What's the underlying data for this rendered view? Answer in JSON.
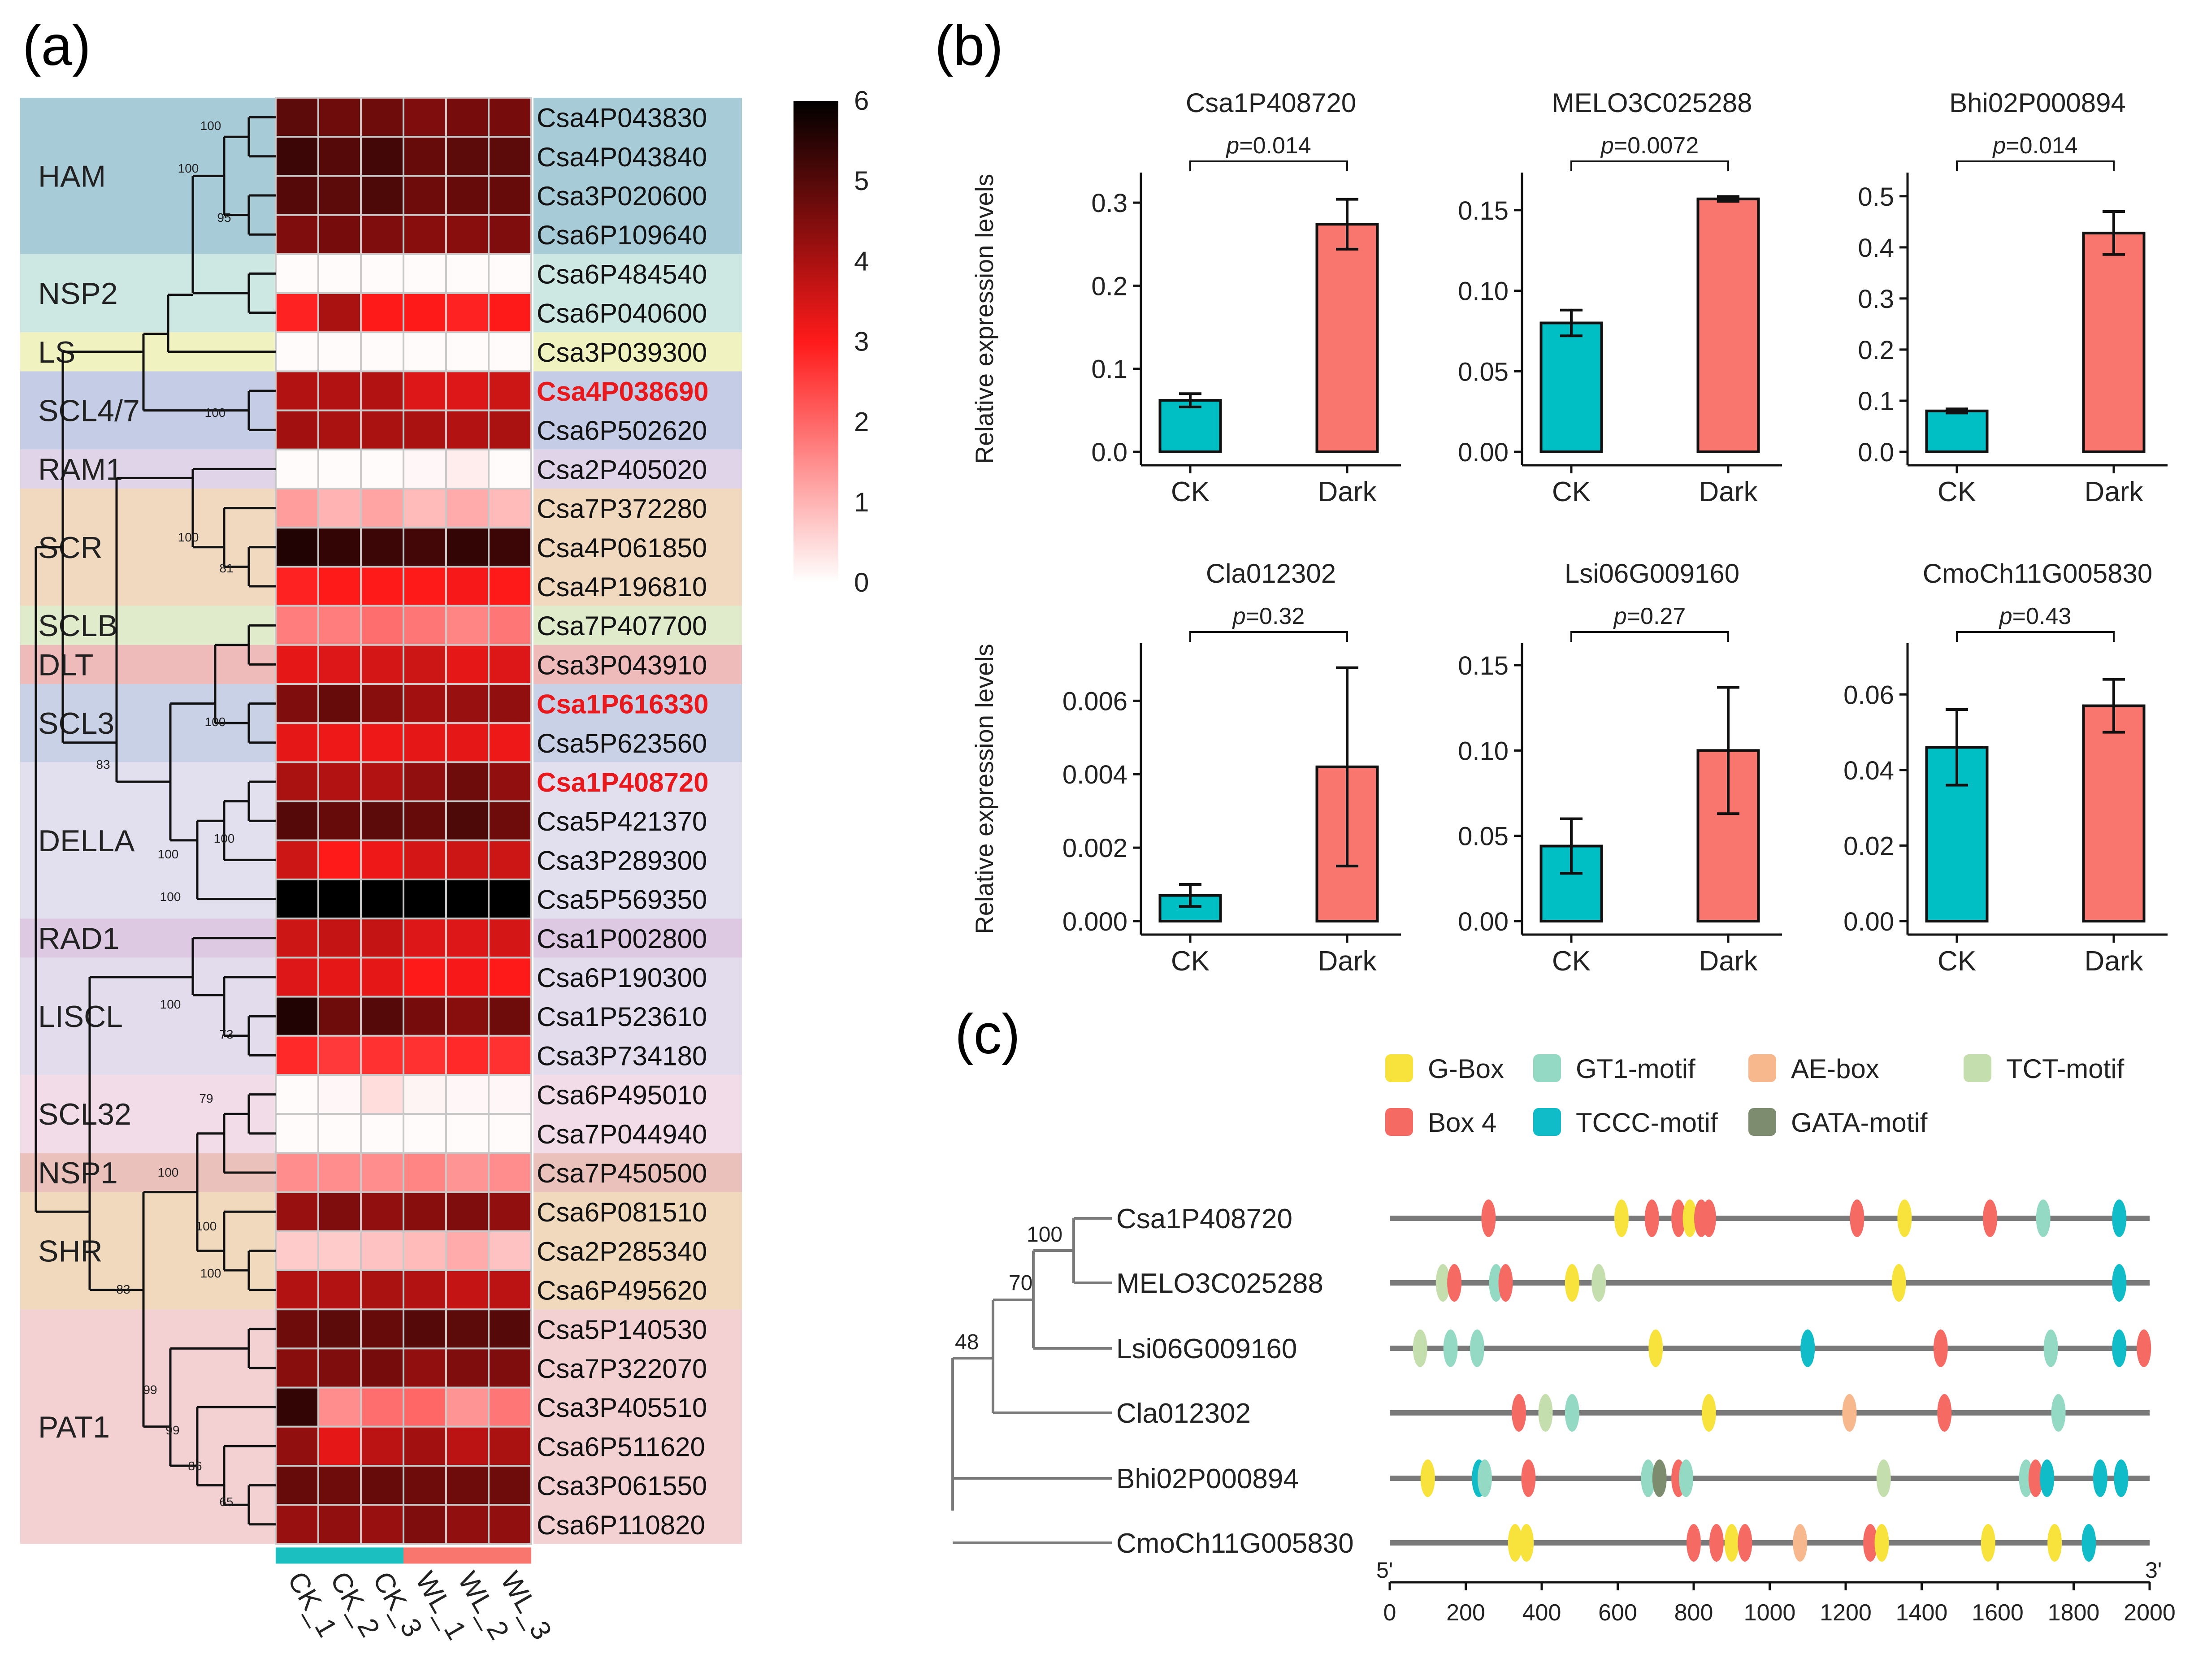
{
  "panel_labels": {
    "a": "(a)",
    "b": "(b)",
    "c": "(c)"
  },
  "colors": {
    "ck": "#00BFC4",
    "dark": "#F8766D",
    "heat_low": "#FFFFFF",
    "heat_mid": "#FF1A1A",
    "heat_high": "#000000",
    "highlight_gene": "#E8191C",
    "ck_strip": "#1CBFC0",
    "wl_strip": "#F8766D"
  },
  "heatmap": {
    "samples": [
      "CK_1",
      "CK_2",
      "CK_3",
      "WL_1",
      "WL_2",
      "WL_3"
    ],
    "scale": {
      "min": 0,
      "max": 6,
      "ticks": [
        "0",
        "1",
        "2",
        "3",
        "4",
        "5",
        "6"
      ]
    },
    "genes": [
      "Csa4P043830",
      "Csa4P043840",
      "Csa3P020600",
      "Csa6P109640",
      "Csa6P484540",
      "Csa6P040600",
      "Csa3P039300",
      "Csa4P038690",
      "Csa6P502620",
      "Csa2P405020",
      "Csa7P372280",
      "Csa4P061850",
      "Csa4P196810",
      "Csa7P407700",
      "Csa3P043910",
      "Csa1P616330",
      "Csa5P623560",
      "Csa1P408720",
      "Csa5P421370",
      "Csa3P289300",
      "Csa5P569350",
      "Csa1P002800",
      "Csa6P190300",
      "Csa1P523610",
      "Csa3P734180",
      "Csa6P495010",
      "Csa7P044940",
      "Csa7P450500",
      "Csa6P081510",
      "Csa2P285340",
      "Csa6P495620",
      "Csa5P140530",
      "Csa7P322070",
      "Csa3P405510",
      "Csa6P511620",
      "Csa3P061550",
      "Csa6P110820"
    ],
    "highlighted": [
      "Csa4P038690",
      "Csa1P616330",
      "Csa1P408720"
    ],
    "values": [
      [
        4.9,
        4.7,
        4.7,
        4.5,
        4.6,
        4.6
      ],
      [
        5.3,
        5.0,
        5.2,
        4.8,
        4.9,
        4.9
      ],
      [
        5.0,
        4.9,
        5.1,
        4.7,
        4.8,
        4.8
      ],
      [
        4.5,
        4.6,
        4.5,
        4.4,
        4.4,
        4.5
      ],
      [
        0.05,
        0.05,
        0.05,
        0.05,
        0.05,
        0.05
      ],
      [
        2.9,
        4.0,
        3.0,
        3.0,
        2.9,
        3.0
      ],
      [
        0.05,
        0.05,
        0.05,
        0.05,
        0.05,
        0.05
      ],
      [
        3.9,
        3.9,
        3.9,
        3.4,
        3.4,
        3.6
      ],
      [
        4.1,
        4.0,
        4.0,
        4.0,
        3.9,
        4.0
      ],
      [
        0.05,
        0.05,
        0.05,
        0.1,
        0.25,
        0.05
      ],
      [
        1.3,
        1.0,
        1.2,
        0.9,
        1.1,
        0.9
      ],
      [
        5.6,
        5.4,
        5.3,
        5.2,
        5.4,
        5.3
      ],
      [
        2.9,
        3.0,
        3.0,
        3.0,
        3.1,
        3.0
      ],
      [
        1.7,
        1.7,
        1.9,
        1.8,
        1.6,
        1.8
      ],
      [
        3.3,
        3.4,
        3.5,
        3.6,
        3.3,
        3.4
      ],
      [
        4.5,
        4.8,
        4.4,
        4.1,
        4.2,
        4.3
      ],
      [
        3.3,
        3.2,
        3.2,
        3.3,
        3.3,
        3.2
      ],
      [
        4.0,
        3.9,
        3.9,
        4.3,
        4.7,
        4.3
      ],
      [
        5.0,
        4.8,
        4.9,
        4.8,
        5.1,
        4.7
      ],
      [
        3.6,
        3.0,
        3.2,
        3.5,
        3.6,
        3.6
      ],
      [
        6.0,
        6.0,
        6.0,
        6.0,
        6.0,
        6.0
      ],
      [
        3.6,
        3.7,
        3.7,
        3.4,
        3.4,
        3.5
      ],
      [
        3.4,
        3.3,
        3.3,
        3.0,
        3.1,
        3.0
      ],
      [
        5.6,
        4.7,
        5.0,
        4.6,
        4.4,
        4.7
      ],
      [
        2.8,
        2.6,
        2.7,
        2.7,
        2.8,
        2.7
      ],
      [
        0.05,
        0.1,
        0.45,
        0.15,
        0.1,
        0.1
      ],
      [
        0.05,
        0.05,
        0.05,
        0.05,
        0.05,
        0.05
      ],
      [
        1.5,
        1.5,
        1.5,
        1.6,
        1.4,
        1.5
      ],
      [
        4.2,
        4.5,
        4.3,
        4.4,
        4.5,
        4.3
      ],
      [
        0.7,
        0.7,
        0.8,
        0.9,
        1.1,
        0.8
      ],
      [
        3.9,
        3.9,
        4.0,
        3.9,
        3.7,
        3.8
      ],
      [
        4.7,
        4.9,
        4.8,
        5.0,
        4.9,
        5.0
      ],
      [
        4.4,
        4.5,
        4.6,
        4.3,
        4.5,
        4.5
      ],
      [
        5.4,
        1.5,
        1.9,
        2.0,
        1.4,
        1.8
      ],
      [
        4.3,
        3.3,
        3.8,
        4.1,
        3.8,
        4.0
      ],
      [
        4.8,
        4.7,
        4.8,
        4.7,
        4.7,
        4.7
      ],
      [
        4.2,
        4.3,
        4.2,
        4.5,
        4.3,
        4.3
      ]
    ],
    "subfamilies": [
      {
        "name": "HAM",
        "from": 0,
        "to": 3,
        "color": "#A8CCD7"
      },
      {
        "name": "NSP2",
        "from": 4,
        "to": 5,
        "color": "#CDE7E3"
      },
      {
        "name": "LS",
        "from": 6,
        "to": 6,
        "color": "#F0F2C0"
      },
      {
        "name": "SCL4/7",
        "from": 7,
        "to": 8,
        "color": "#C5CDE6"
      },
      {
        "name": "RAM1",
        "from": 9,
        "to": 9,
        "color": "#E0D4E9"
      },
      {
        "name": "SCR",
        "from": 10,
        "to": 12,
        "color": "#F0D9BF"
      },
      {
        "name": "SCLB",
        "from": 13,
        "to": 13,
        "color": "#DFEBCB"
      },
      {
        "name": "DLT",
        "from": 14,
        "to": 14,
        "color": "#EEBABA"
      },
      {
        "name": "SCL3",
        "from": 15,
        "to": 16,
        "color": "#C9D1E6"
      },
      {
        "name": "DELLA",
        "from": 17,
        "to": 20,
        "color": "#E2E0EE"
      },
      {
        "name": "RAD1",
        "from": 21,
        "to": 21,
        "color": "#DDC9E2"
      },
      {
        "name": "LISCL",
        "from": 22,
        "to": 24,
        "color": "#E2DCEC"
      },
      {
        "name": "SCL32",
        "from": 25,
        "to": 26,
        "color": "#F1DCE8"
      },
      {
        "name": "NSP1",
        "from": 27,
        "to": 27,
        "color": "#EBC1BC"
      },
      {
        "name": "SHR",
        "from": 28,
        "to": 30,
        "color": "#F0D9BD"
      },
      {
        "name": "PAT1",
        "from": 31,
        "to": 36,
        "color": "#F3D1D2"
      }
    ],
    "bootstrap_labels": [
      "100",
      "100",
      "95",
      "100",
      "100",
      "81",
      "100",
      "83",
      "100",
      "100",
      "100",
      "73",
      "100",
      "79",
      "100",
      "100",
      "100",
      "83",
      "99",
      "99",
      "86",
      "65"
    ]
  },
  "chart_data": [
    {
      "type": "bar",
      "title": "Csa1P408720",
      "categories": [
        "CK",
        "Dark"
      ],
      "values": [
        0.062,
        0.274
      ],
      "errors": [
        0.008,
        0.03
      ],
      "ylabel": "Relative expression levels",
      "ylim": [
        0,
        0.32
      ],
      "ticks": [
        0,
        0.1,
        0.2,
        0.3
      ],
      "tick_labels": [
        "0.0",
        "0.1",
        "0.2",
        "0.3"
      ],
      "pvalue": "0.014",
      "p_prefix": "p",
      "p_suffix": "="
    },
    {
      "type": "bar",
      "title": "MELO3C025288",
      "categories": [
        "CK",
        "Dark"
      ],
      "values": [
        0.08,
        0.157
      ],
      "errors": [
        0.008,
        0.0015
      ],
      "ylabel": "",
      "ylim": [
        0,
        0.165
      ],
      "ticks": [
        0,
        0.05,
        0.1,
        0.15
      ],
      "tick_labels": [
        "0.00",
        "0.05",
        "0.10",
        "0.15"
      ],
      "pvalue": "0.0072",
      "p_prefix": "p",
      "p_suffix": "="
    },
    {
      "type": "bar",
      "title": "Bhi02P000894",
      "categories": [
        "CK",
        "Dark"
      ],
      "values": [
        0.08,
        0.428
      ],
      "errors": [
        0.004,
        0.042
      ],
      "ylabel": "",
      "ylim": [
        0,
        0.52
      ],
      "ticks": [
        0,
        0.1,
        0.2,
        0.3,
        0.4,
        0.5
      ],
      "tick_labels": [
        "0.0",
        "0.1",
        "0.2",
        "0.3",
        "0.4",
        "0.5"
      ],
      "pvalue": "0.014",
      "p_prefix": "p",
      "p_suffix": "="
    },
    {
      "type": "bar",
      "title": "Cla012302",
      "categories": [
        "CK",
        "Dark"
      ],
      "values": [
        0.0007,
        0.0042
      ],
      "errors": [
        0.0003,
        0.0027
      ],
      "ylabel": "Relative expression levels",
      "ylim": [
        0,
        0.0072
      ],
      "ticks": [
        0,
        0.002,
        0.004,
        0.006
      ],
      "tick_labels": [
        "0.000",
        "0.002",
        "0.004",
        "0.006"
      ],
      "pvalue": "0.32",
      "p_prefix": "p",
      "p_suffix": "="
    },
    {
      "type": "bar",
      "title": "Lsi06G009160",
      "categories": [
        "CK",
        "Dark"
      ],
      "values": [
        0.044,
        0.1
      ],
      "errors": [
        0.016,
        0.037
      ],
      "ylabel": "",
      "ylim": [
        0,
        0.155
      ],
      "ticks": [
        0,
        0.05,
        0.1,
        0.15
      ],
      "tick_labels": [
        "0.00",
        "0.05",
        "0.10",
        "0.15"
      ],
      "pvalue": "0.27",
      "p_prefix": "p",
      "p_suffix": "="
    },
    {
      "type": "bar",
      "title": "CmoCh11G005830",
      "categories": [
        "CK",
        "Dark"
      ],
      "values": [
        0.046,
        0.057
      ],
      "errors": [
        0.01,
        0.007
      ],
      "ylabel": "",
      "ylim": [
        0,
        0.07
      ],
      "ticks": [
        0,
        0.02,
        0.04,
        0.06
      ],
      "tick_labels": [
        "0.00",
        "0.02",
        "0.04",
        "0.06"
      ],
      "pvalue": "0.43",
      "p_prefix": "p",
      "p_suffix": "="
    }
  ],
  "motifs": {
    "legend": [
      {
        "name": "G-Box",
        "color": "#F8E23C"
      },
      {
        "name": "GT1-motif",
        "color": "#94D9C4"
      },
      {
        "name": "AE-box",
        "color": "#F8B88E"
      },
      {
        "name": "TCT-motif",
        "color": "#C5DEAD"
      },
      {
        "name": "Box 4",
        "color": "#F56A63"
      },
      {
        "name": "TCCC-motif",
        "color": "#0FBCC8"
      },
      {
        "name": "GATA-motif",
        "color": "#7D8C6E"
      }
    ],
    "axis": {
      "min": 0,
      "max": 2000,
      "ticks": [
        0,
        200,
        400,
        600,
        800,
        1000,
        1200,
        1400,
        1600,
        1800,
        2000
      ],
      "tick_labels": [
        "0",
        "200",
        "400",
        "600",
        "800",
        "1000",
        "1200",
        "1400",
        "1600",
        "1800",
        "2000"
      ],
      "left_label": "5'",
      "right_label": "3'"
    },
    "genes": [
      {
        "name": "Csa1P408720",
        "sites": [
          [
            260,
            "Box 4"
          ],
          [
            610,
            "G-Box"
          ],
          [
            690,
            "Box 4"
          ],
          [
            760,
            "Box 4"
          ],
          [
            790,
            "G-Box"
          ],
          [
            820,
            "Box 4"
          ],
          [
            840,
            "Box 4"
          ],
          [
            1230,
            "Box 4"
          ],
          [
            1355,
            "G-Box"
          ],
          [
            1580,
            "Box 4"
          ],
          [
            1720,
            "GT1-motif"
          ],
          [
            1920,
            "TCCC-motif"
          ]
        ]
      },
      {
        "name": "MELO3C025288",
        "sites": [
          [
            140,
            "TCT-motif"
          ],
          [
            170,
            "Box 4"
          ],
          [
            280,
            "GT1-motif"
          ],
          [
            305,
            "Box 4"
          ],
          [
            480,
            "G-Box"
          ],
          [
            550,
            "TCT-motif"
          ],
          [
            1340,
            "G-Box"
          ],
          [
            1920,
            "TCCC-motif"
          ]
        ]
      },
      {
        "name": "Lsi06G009160",
        "sites": [
          [
            80,
            "TCT-motif"
          ],
          [
            160,
            "GT1-motif"
          ],
          [
            230,
            "GT1-motif"
          ],
          [
            700,
            "G-Box"
          ],
          [
            1100,
            "TCCC-motif"
          ],
          [
            1450,
            "Box 4"
          ],
          [
            1740,
            "GT1-motif"
          ],
          [
            1920,
            "TCCC-motif"
          ],
          [
            1985,
            "Box 4"
          ]
        ]
      },
      {
        "name": "Cla012302",
        "sites": [
          [
            340,
            "Box 4"
          ],
          [
            410,
            "TCT-motif"
          ],
          [
            480,
            "GT1-motif"
          ],
          [
            840,
            "G-Box"
          ],
          [
            1210,
            "AE-box"
          ],
          [
            1460,
            "Box 4"
          ],
          [
            1760,
            "GT1-motif"
          ]
        ]
      },
      {
        "name": "Bhi02P000894",
        "sites": [
          [
            100,
            "G-Box"
          ],
          [
            235,
            "TCCC-motif"
          ],
          [
            250,
            "GT1-motif"
          ],
          [
            365,
            "Box 4"
          ],
          [
            680,
            "GT1-motif"
          ],
          [
            710,
            "GATA-motif"
          ],
          [
            760,
            "Box 4"
          ],
          [
            780,
            "GT1-motif"
          ],
          [
            1300,
            "TCT-motif"
          ],
          [
            1675,
            "GT1-motif"
          ],
          [
            1700,
            "Box 4"
          ],
          [
            1730,
            "TCCC-motif"
          ],
          [
            1870,
            "TCCC-motif"
          ],
          [
            1925,
            "TCCC-motif"
          ]
        ]
      },
      {
        "name": "CmoCh11G005830",
        "sites": [
          [
            330,
            "G-Box"
          ],
          [
            360,
            "G-Box"
          ],
          [
            800,
            "Box 4"
          ],
          [
            860,
            "Box 4"
          ],
          [
            900,
            "G-Box"
          ],
          [
            935,
            "Box 4"
          ],
          [
            1080,
            "AE-box"
          ],
          [
            1265,
            "Box 4"
          ],
          [
            1295,
            "G-Box"
          ],
          [
            1575,
            "G-Box"
          ],
          [
            1750,
            "G-Box"
          ],
          [
            1840,
            "TCCC-motif"
          ]
        ]
      }
    ],
    "tree_bootstrap": [
      "100",
      "70",
      "48"
    ]
  }
}
